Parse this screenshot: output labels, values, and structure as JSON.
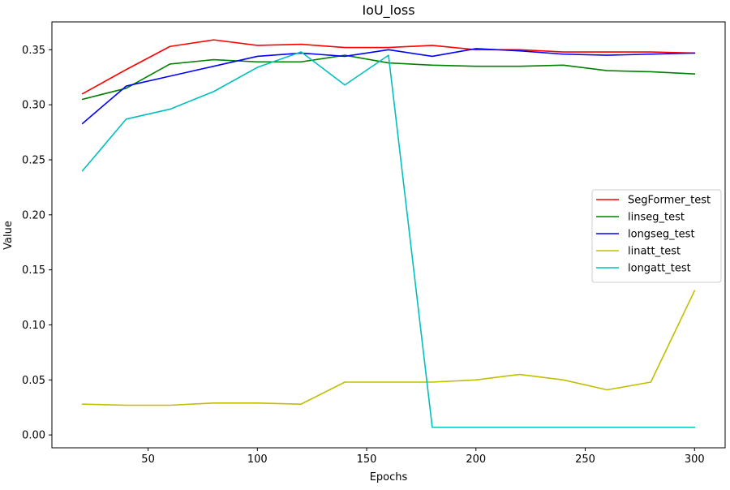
{
  "chart_data": {
    "type": "line",
    "title": "IoU_loss",
    "xlabel": "Epochs",
    "ylabel": "Value",
    "xlim": [
      6,
      314
    ],
    "ylim": [
      -0.0117,
      0.3753
    ],
    "xticks": [
      50,
      100,
      150,
      200,
      250,
      300
    ],
    "yticks": [
      0.0,
      0.05,
      0.1,
      0.15,
      0.2,
      0.25,
      0.3,
      0.35
    ],
    "xtick_labels": [
      "50",
      "100",
      "150",
      "200",
      "250",
      "300"
    ],
    "ytick_labels": [
      "0.00",
      "0.05",
      "0.10",
      "0.15",
      "0.20",
      "0.25",
      "0.30",
      "0.35"
    ],
    "grid": false,
    "legend_position": "center-right",
    "x": [
      20,
      40,
      60,
      80,
      100,
      120,
      140,
      160,
      180,
      200,
      220,
      240,
      260,
      280,
      300
    ],
    "series": [
      {
        "name": "SegFormer_test",
        "color": "#ff0000",
        "values": [
          0.31,
          0.332,
          0.353,
          0.359,
          0.354,
          0.355,
          0.352,
          0.352,
          0.354,
          0.35,
          0.35,
          0.348,
          0.348,
          0.348,
          0.347
        ]
      },
      {
        "name": "linseg_test",
        "color": "#008000",
        "values": [
          0.305,
          0.315,
          0.337,
          0.341,
          0.339,
          0.339,
          0.345,
          0.338,
          0.336,
          0.335,
          0.335,
          0.336,
          0.331,
          0.33,
          0.328
        ]
      },
      {
        "name": "longseg_test",
        "color": "#0000ff",
        "values": [
          0.283,
          0.317,
          0.326,
          0.335,
          0.344,
          0.347,
          0.344,
          0.35,
          0.344,
          0.351,
          0.349,
          0.346,
          0.345,
          0.346,
          0.347
        ]
      },
      {
        "name": "linatt_test",
        "color": "#bfbf00",
        "values": [
          0.028,
          0.027,
          0.027,
          0.029,
          0.029,
          0.028,
          0.048,
          0.048,
          0.048,
          0.05,
          0.055,
          0.05,
          0.041,
          0.048,
          0.131
        ]
      },
      {
        "name": "longatt_test",
        "color": "#00bfbf",
        "values": [
          0.24,
          0.287,
          0.296,
          0.312,
          0.334,
          0.348,
          0.318,
          0.345,
          0.007,
          0.007,
          0.007,
          0.007,
          0.007,
          0.007,
          0.007
        ]
      }
    ]
  }
}
